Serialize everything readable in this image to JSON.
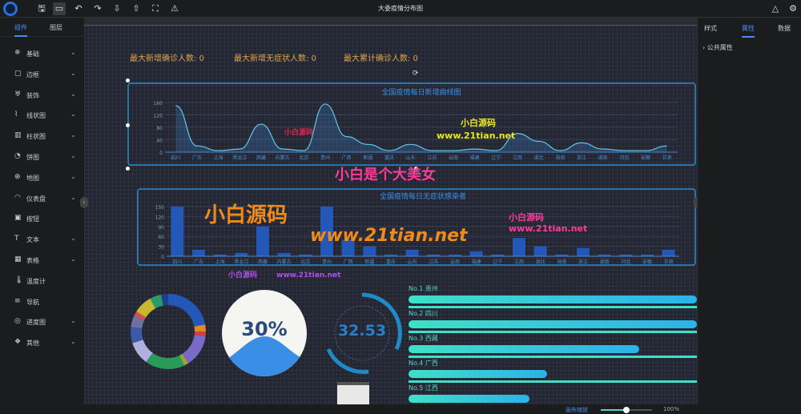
{
  "app": {
    "title": "大委疫情分布图"
  },
  "toolbar": {
    "icons": [
      "save-icon",
      "preview-icon",
      "undo-icon",
      "redo-icon",
      "download-icon",
      "upload-icon",
      "fullscreen-icon",
      "warning-icon"
    ]
  },
  "left_panel": {
    "tabs": [
      {
        "label": "组件",
        "active": true
      },
      {
        "label": "图层",
        "active": false
      }
    ],
    "items": [
      {
        "label": "基础",
        "icon": "❄",
        "expand": true
      },
      {
        "label": "边框",
        "icon": "▢",
        "expand": true
      },
      {
        "label": "装饰",
        "icon": "♅",
        "expand": true
      },
      {
        "label": "线状图",
        "icon": "⌇",
        "expand": true
      },
      {
        "label": "柱状图",
        "icon": "▥",
        "expand": true
      },
      {
        "label": "饼图",
        "icon": "◔",
        "expand": true
      },
      {
        "label": "地图",
        "icon": "⊕",
        "expand": true
      },
      {
        "label": "仪表盘",
        "icon": "◠",
        "expand": true
      },
      {
        "label": "按钮",
        "icon": "▣",
        "expand": false
      },
      {
        "label": "文本",
        "icon": "T",
        "expand": true
      },
      {
        "label": "表格",
        "icon": "▦",
        "expand": true
      },
      {
        "label": "温度计",
        "icon": "🌡",
        "expand": false
      },
      {
        "label": "导航",
        "icon": "≡",
        "expand": false
      },
      {
        "label": "进度图",
        "icon": "◎",
        "expand": true
      },
      {
        "label": "其他",
        "icon": "❖",
        "expand": true
      }
    ]
  },
  "right_panel": {
    "tabs": [
      {
        "label": "样式",
        "active": false
      },
      {
        "label": "属性",
        "active": true
      },
      {
        "label": "数据",
        "active": false
      }
    ],
    "section": "公共属性"
  },
  "stats": [
    "最大新增确诊人数: 0",
    "最大新增无症状人数: 0",
    "最大累计确诊人数: 0"
  ],
  "watermarks": {
    "big": "小白是个大美女",
    "brand": "小白源码",
    "url": "www.21tian.net"
  },
  "chart_data": [
    {
      "type": "area",
      "title": "全国疫情每日新增曲线图",
      "categories": [
        "四川",
        "广东",
        "上海",
        "黑龙江",
        "西藏",
        "内蒙古",
        "北京",
        "贵州",
        "广西",
        "新疆",
        "重庆",
        "山东",
        "江苏",
        "云南",
        "福建",
        "辽宁",
        "江西",
        "湖北",
        "海南",
        "浙江",
        "湖南",
        "河北",
        "安徽",
        "甘肃"
      ],
      "values": [
        150,
        20,
        5,
        10,
        90,
        10,
        5,
        155,
        50,
        25,
        5,
        25,
        5,
        5,
        10,
        5,
        60,
        35,
        5,
        30,
        10,
        5,
        5,
        20
      ],
      "ylim": [
        0,
        160
      ],
      "yticks": [
        0,
        40,
        80,
        120,
        160
      ],
      "color": "#5ec8e6"
    },
    {
      "type": "bar",
      "title": "全国疫情每日无症状感染者",
      "categories": [
        "四川",
        "广东",
        "上海",
        "黑龙江",
        "西藏",
        "内蒙古",
        "北京",
        "贵州",
        "广西",
        "新疆",
        "重庆",
        "山东",
        "江苏",
        "云南",
        "福建",
        "辽宁",
        "江西",
        "湖北",
        "海南",
        "浙江",
        "湖南",
        "河北",
        "安徽",
        "甘肃"
      ],
      "values": [
        150,
        20,
        5,
        10,
        90,
        10,
        5,
        150,
        50,
        30,
        5,
        20,
        5,
        5,
        15,
        5,
        55,
        30,
        5,
        25,
        5,
        5,
        5,
        20
      ],
      "ylim": [
        0,
        150
      ],
      "yticks": [
        0,
        30,
        60,
        90,
        120,
        150
      ],
      "color": "#2458b8"
    }
  ],
  "liquid": {
    "value": "30%",
    "fill": 0.3
  },
  "gauge": {
    "value": "32.53"
  },
  "ranking": [
    {
      "label": "No.1 贵州",
      "fill": 100
    },
    {
      "label": "No.2 四川",
      "fill": 100
    },
    {
      "label": "No.3 西藏",
      "fill": 80
    },
    {
      "label": "No.4 广西",
      "fill": 48
    },
    {
      "label": "No.5 江西",
      "fill": 42
    }
  ],
  "bottom": {
    "zoom_label": "画布缩放",
    "zoom_value": "100%",
    "zoom_level": 0.5
  }
}
